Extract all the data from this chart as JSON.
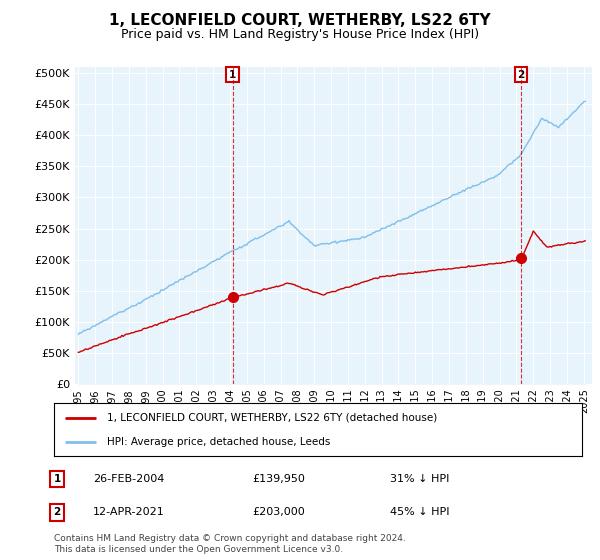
{
  "title": "1, LECONFIELD COURT, WETHERBY, LS22 6TY",
  "subtitle": "Price paid vs. HM Land Registry's House Price Index (HPI)",
  "title_fontsize": 11,
  "subtitle_fontsize": 9,
  "ylabel_ticks": [
    "£0",
    "£50K",
    "£100K",
    "£150K",
    "£200K",
    "£250K",
    "£300K",
    "£350K",
    "£400K",
    "£450K",
    "£500K"
  ],
  "ytick_values": [
    0,
    50000,
    100000,
    150000,
    200000,
    250000,
    300000,
    350000,
    400000,
    450000,
    500000
  ],
  "ylim": [
    0,
    510000
  ],
  "hpi_color": "#7fbfea",
  "hpi_fill_color": "#d8eef9",
  "price_color": "#cc0000",
  "sale1_date": "26-FEB-2004",
  "sale1_price": 139950,
  "sale1_year": 2004.15,
  "sale2_date": "12-APR-2021",
  "sale2_price": 203000,
  "sale2_year": 2021.28,
  "sale1_annotation": "31% ↓ HPI",
  "sale2_annotation": "45% ↓ HPI",
  "legend_line1": "1, LECONFIELD COURT, WETHERBY, LS22 6TY (detached house)",
  "legend_line2": "HPI: Average price, detached house, Leeds",
  "footer_line1": "Contains HM Land Registry data © Crown copyright and database right 2024.",
  "footer_line2": "This data is licensed under the Open Government Licence v3.0.",
  "background_color": "#ffffff",
  "plot_bg_color": "#e8f4fc",
  "grid_color": "#ffffff",
  "x_start_year": 1995,
  "x_end_year": 2025
}
